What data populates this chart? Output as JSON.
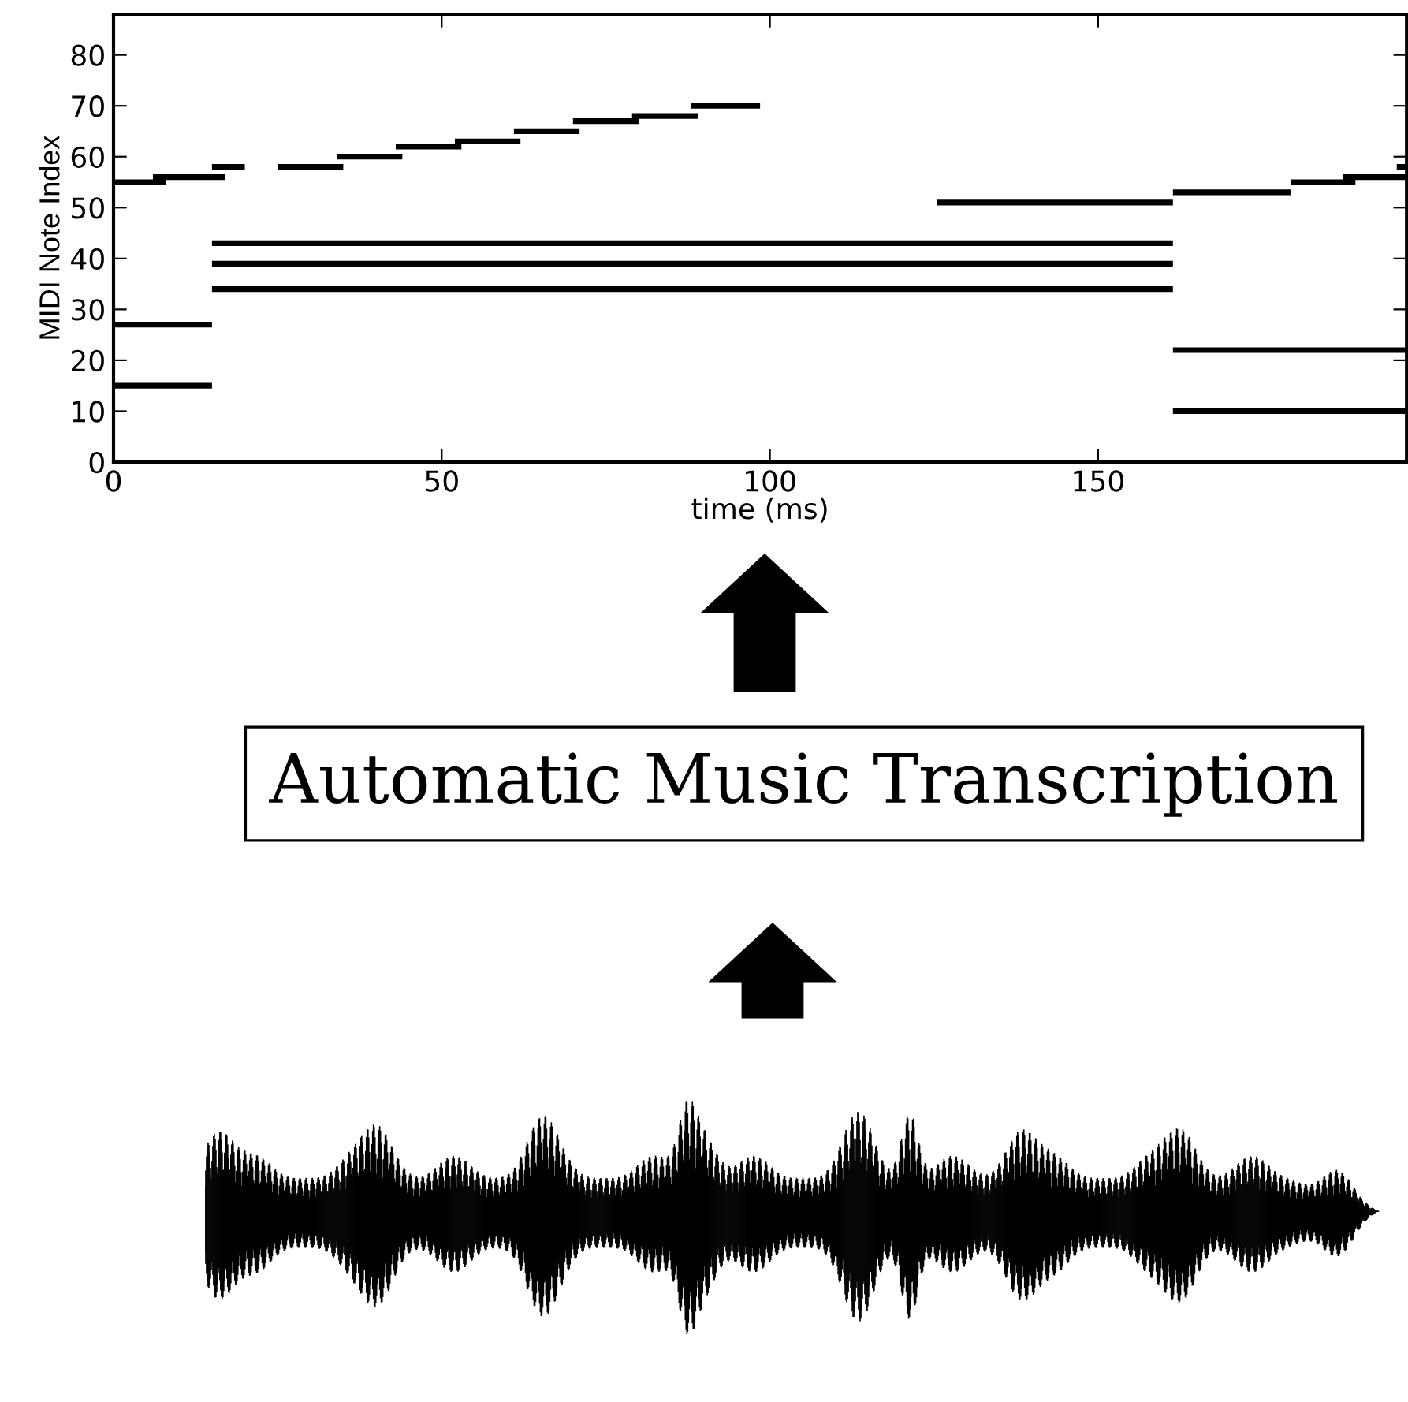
{
  "chart_data": {
    "type": "line",
    "xlabel": "time (ms)",
    "ylabel": "MIDI Note Index",
    "xlim": [
      0,
      197
    ],
    "ylim": [
      0,
      88
    ],
    "xticks": [
      0,
      50,
      100,
      150
    ],
    "yticks": [
      0,
      10,
      20,
      30,
      40,
      50,
      60,
      70,
      80
    ],
    "grid": false,
    "marker": "none",
    "line_style": "solid",
    "annotations": [
      "Automatic Music Transcription"
    ],
    "series": [
      {
        "color": "#000000",
        "x": [
          0,
          8
        ],
        "values": [
          55,
          55
        ]
      },
      {
        "color": "#000000",
        "x": [
          6,
          17
        ],
        "values": [
          56,
          56
        ]
      },
      {
        "color": "#000000",
        "x": [
          15,
          20
        ],
        "values": [
          58,
          58
        ]
      },
      {
        "color": "#000000",
        "x": [
          25,
          35
        ],
        "values": [
          58,
          58
        ]
      },
      {
        "color": "#000000",
        "x": [
          34,
          44
        ],
        "values": [
          60,
          60
        ]
      },
      {
        "color": "#000000",
        "x": [
          43,
          53
        ],
        "values": [
          62,
          62
        ]
      },
      {
        "color": "#000000",
        "x": [
          52,
          62
        ],
        "values": [
          63,
          63
        ]
      },
      {
        "color": "#000000",
        "x": [
          61,
          71
        ],
        "values": [
          65,
          65
        ]
      },
      {
        "color": "#000000",
        "x": [
          70,
          80
        ],
        "values": [
          67,
          67
        ]
      },
      {
        "color": "#000000",
        "x": [
          79,
          89
        ],
        "values": [
          68,
          68
        ]
      },
      {
        "color": "#000000",
        "x": [
          88,
          98.5
        ],
        "values": [
          70,
          70
        ]
      },
      {
        "color": "#000000",
        "x": [
          125.5,
          161.4
        ],
        "values": [
          51,
          51
        ]
      },
      {
        "color": "#000000",
        "x": [
          15,
          161.4
        ],
        "values": [
          43,
          43
        ]
      },
      {
        "color": "#000000",
        "x": [
          15,
          161.4
        ],
        "values": [
          39,
          39
        ]
      },
      {
        "color": "#000000",
        "x": [
          15,
          161.4
        ],
        "values": [
          34,
          34
        ]
      },
      {
        "color": "#000000",
        "x": [
          0,
          15
        ],
        "values": [
          27,
          27
        ]
      },
      {
        "color": "#000000",
        "x": [
          0,
          15
        ],
        "values": [
          15,
          15
        ]
      },
      {
        "color": "#000000",
        "x": [
          161.4,
          179.4
        ],
        "values": [
          53,
          53
        ]
      },
      {
        "color": "#000000",
        "x": [
          179.4,
          189.2
        ],
        "values": [
          55,
          55
        ]
      },
      {
        "color": "#000000",
        "x": [
          187.3,
          197
        ],
        "values": [
          56,
          56
        ]
      },
      {
        "color": "#000000",
        "x": [
          195.5,
          197
        ],
        "values": [
          58,
          58
        ]
      },
      {
        "color": "#000000",
        "x": [
          161.4,
          197
        ],
        "values": [
          22,
          22
        ]
      },
      {
        "color": "#000000",
        "x": [
          161.4,
          197
        ],
        "values": [
          10,
          10
        ]
      }
    ]
  }
}
